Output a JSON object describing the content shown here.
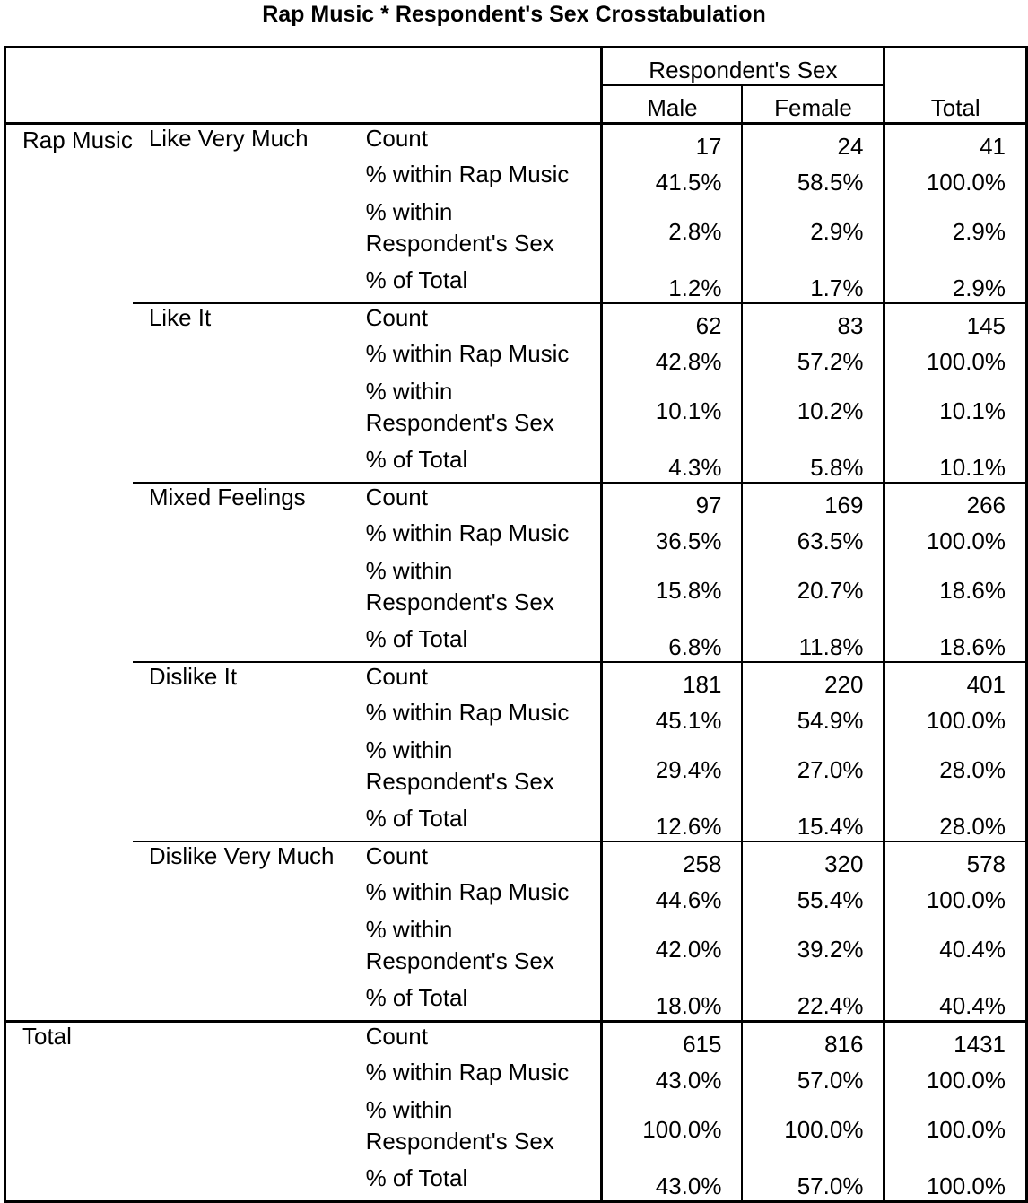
{
  "title": "Rap Music * Respondent's Sex Crosstabulation",
  "header": {
    "group_label": "Respondent's Sex",
    "columns": [
      "Male",
      "Female"
    ],
    "total": "Total"
  },
  "row_variable": "Rap Music",
  "statistics": [
    "Count",
    "% within Rap Music",
    "% within Respondent's Sex",
    "% of Total"
  ],
  "groups": [
    {
      "label": "Like Very Much",
      "rows": [
        [
          "17",
          "24",
          "41"
        ],
        [
          "41.5%",
          "58.5%",
          "100.0%"
        ],
        [
          "2.8%",
          "2.9%",
          "2.9%"
        ],
        [
          "1.2%",
          "1.7%",
          "2.9%"
        ]
      ]
    },
    {
      "label": "Like It",
      "rows": [
        [
          "62",
          "83",
          "145"
        ],
        [
          "42.8%",
          "57.2%",
          "100.0%"
        ],
        [
          "10.1%",
          "10.2%",
          "10.1%"
        ],
        [
          "4.3%",
          "5.8%",
          "10.1%"
        ]
      ]
    },
    {
      "label": "Mixed Feelings",
      "rows": [
        [
          "97",
          "169",
          "266"
        ],
        [
          "36.5%",
          "63.5%",
          "100.0%"
        ],
        [
          "15.8%",
          "20.7%",
          "18.6%"
        ],
        [
          "6.8%",
          "11.8%",
          "18.6%"
        ]
      ]
    },
    {
      "label": "Dislike It",
      "rows": [
        [
          "181",
          "220",
          "401"
        ],
        [
          "45.1%",
          "54.9%",
          "100.0%"
        ],
        [
          "29.4%",
          "27.0%",
          "28.0%"
        ],
        [
          "12.6%",
          "15.4%",
          "28.0%"
        ]
      ]
    },
    {
      "label": "Dislike Very Much",
      "rows": [
        [
          "258",
          "320",
          "578"
        ],
        [
          "44.6%",
          "55.4%",
          "100.0%"
        ],
        [
          "42.0%",
          "39.2%",
          "40.4%"
        ],
        [
          "18.0%",
          "22.4%",
          "40.4%"
        ]
      ]
    }
  ],
  "total": {
    "label": "Total",
    "rows": [
      [
        "615",
        "816",
        "1431"
      ],
      [
        "43.0%",
        "57.0%",
        "100.0%"
      ],
      [
        "100.0%",
        "100.0%",
        "100.0%"
      ],
      [
        "43.0%",
        "57.0%",
        "100.0%"
      ]
    ]
  }
}
